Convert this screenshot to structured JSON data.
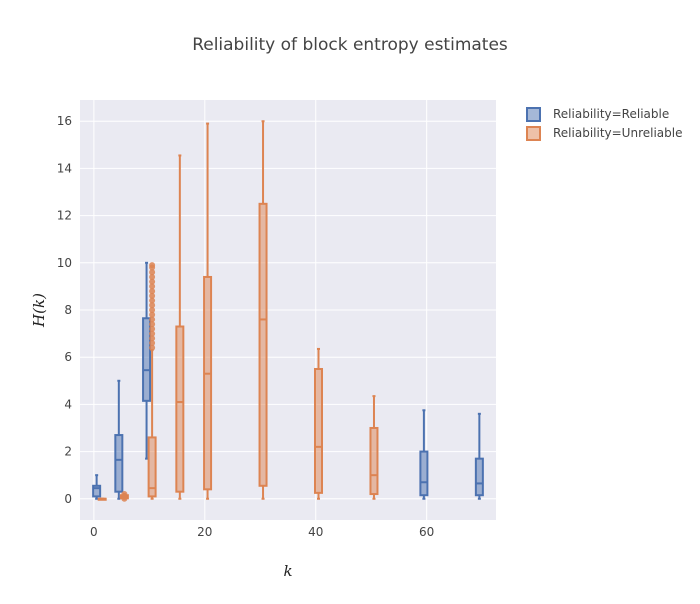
{
  "chart_data": {
    "type": "box",
    "title": "Reliability of block entropy estimates",
    "xlabel": "k",
    "ylabel": "H(k)",
    "xlim": [
      -2.5,
      72.5
    ],
    "ylim": [
      -0.9,
      16.9
    ],
    "xticks": [
      0,
      20,
      40,
      60
    ],
    "yticks": [
      0,
      2,
      4,
      6,
      8,
      10,
      12,
      14,
      16
    ],
    "grid": true,
    "legend_position": "top-right",
    "series": [
      {
        "name": "Reliability=Reliable",
        "color": "#4c72b0",
        "boxes": [
          {
            "x": 0.5,
            "min": 0,
            "q1": 0.1,
            "median": 0.45,
            "q3": 0.55,
            "max": 1.0,
            "outliers": []
          },
          {
            "x": 4.5,
            "min": 0,
            "q1": 0.3,
            "median": 1.65,
            "q3": 2.7,
            "max": 5.0,
            "outliers": []
          },
          {
            "x": 9.5,
            "min": 1.7,
            "q1": 4.15,
            "median": 5.45,
            "q3": 7.65,
            "max": 10.0,
            "outliers": []
          },
          {
            "x": 59.5,
            "min": 0,
            "q1": 0.15,
            "median": 0.7,
            "q3": 2.0,
            "max": 3.75,
            "outliers": []
          },
          {
            "x": 69.5,
            "min": 0,
            "q1": 0.15,
            "median": 0.65,
            "q3": 1.7,
            "max": 3.6,
            "outliers": []
          }
        ]
      },
      {
        "name": "Reliability=Unreliable",
        "color": "#dd8452",
        "boxes": [
          {
            "x": 1.5,
            "min": 0,
            "q1": 0,
            "median": 0,
            "q3": 0,
            "max": 0,
            "outliers": []
          },
          {
            "x": 5.5,
            "min": 0,
            "q1": 0.02,
            "median": 0.08,
            "q3": 0.15,
            "max": 0.2,
            "outliers": [
              0.0,
              0.1,
              0.2
            ]
          },
          {
            "x": 10.5,
            "min": 0,
            "q1": 0.1,
            "median": 0.45,
            "q3": 2.6,
            "max": 6.3,
            "outliers": [
              6.4,
              6.6,
              6.8,
              7.0,
              7.2,
              7.4,
              7.6,
              7.8,
              8.0,
              8.2,
              8.4,
              8.6,
              8.8,
              9.0,
              9.2,
              9.4,
              9.6,
              9.8,
              9.9
            ]
          },
          {
            "x": 15.5,
            "min": 0,
            "q1": 0.3,
            "median": 4.1,
            "q3": 7.3,
            "max": 14.55,
            "outliers": []
          },
          {
            "x": 20.5,
            "min": 0,
            "q1": 0.4,
            "median": 5.3,
            "q3": 9.4,
            "max": 15.9,
            "outliers": []
          },
          {
            "x": 30.5,
            "min": 0,
            "q1": 0.55,
            "median": 7.6,
            "q3": 12.5,
            "max": 16.0,
            "outliers": []
          },
          {
            "x": 40.5,
            "min": 0,
            "q1": 0.25,
            "median": 2.2,
            "q3": 5.5,
            "max": 6.35,
            "outliers": []
          },
          {
            "x": 50.5,
            "min": 0,
            "q1": 0.2,
            "median": 1.0,
            "q3": 3.0,
            "max": 4.35,
            "outliers": []
          }
        ]
      }
    ]
  }
}
